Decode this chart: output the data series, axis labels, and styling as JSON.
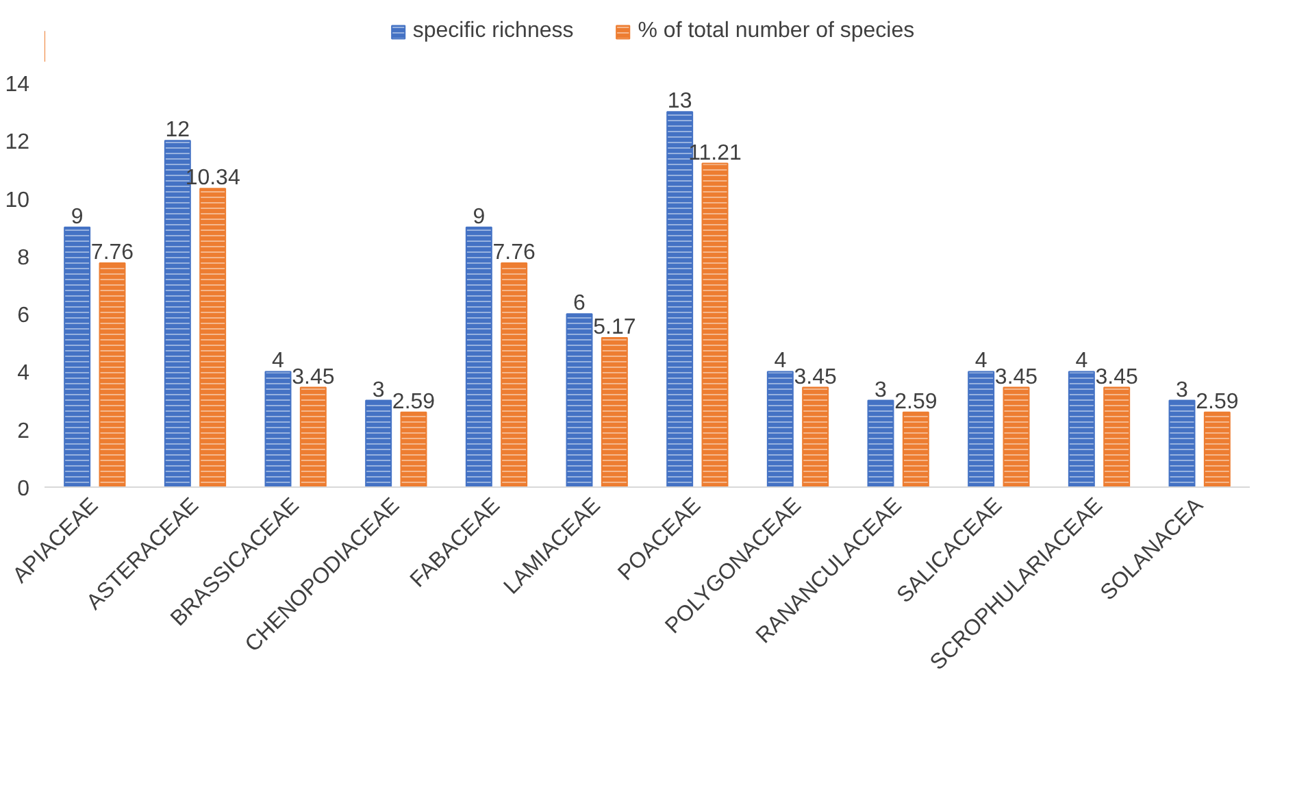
{
  "chart_data": {
    "type": "bar",
    "categories": [
      "APIACEAE",
      "ASTERACEAE",
      "BRASSICACEAE",
      "CHENOPODIACEAE",
      "FABACEAE",
      "LAMIACEAE",
      "POACEAE",
      "POLYGONACEAE",
      "RANANCULACEAE",
      "SALICACEAE",
      "SCROPHULARIACEAE",
      "SOLANACEA"
    ],
    "series": [
      {
        "name": "specific richness",
        "color": "#4472c4",
        "values": [
          9,
          12,
          4,
          3,
          9,
          6,
          13,
          4,
          3,
          4,
          4,
          3
        ]
      },
      {
        "name": "% of total number of species",
        "color": "#ed7d31",
        "values": [
          7.76,
          10.34,
          3.45,
          2.59,
          7.76,
          5.17,
          11.21,
          3.45,
          2.59,
          3.45,
          3.45,
          2.59
        ]
      }
    ],
    "ylim": [
      0,
      14
    ],
    "yticks": [
      0,
      2,
      4,
      6,
      8,
      10,
      12,
      14
    ],
    "grid": false,
    "legend": "top",
    "data_labels": true
  }
}
